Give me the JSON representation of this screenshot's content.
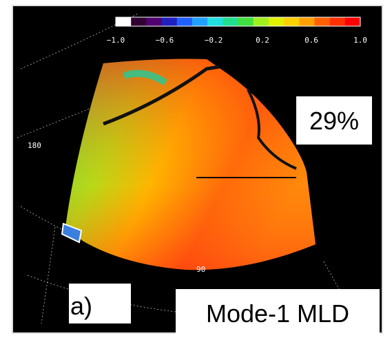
{
  "colorbar": {
    "ticks": [
      "−1.0",
      "−0.6",
      "−0.2",
      "0.2",
      "0.6",
      "1.0"
    ]
  },
  "map": {
    "lat_label": "180",
    "lon_label": "90"
  },
  "annotation": "29%",
  "panel_label": "a)",
  "caption": "Mode-1 MLD"
}
